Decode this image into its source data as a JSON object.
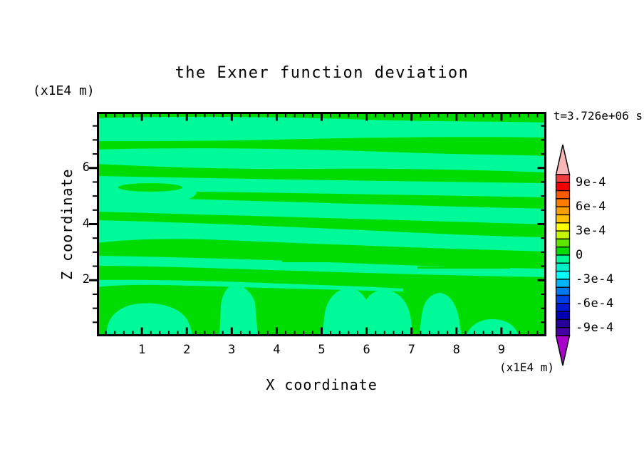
{
  "chart_data": {
    "type": "contour",
    "title": "the Exner function deviation",
    "annotation": "t=3.726e+06 s",
    "xlabel": "X coordinate",
    "x_units_label": "(x1E4 m)",
    "x_range": [
      0,
      10
    ],
    "x_major_ticks": [
      1,
      2,
      3,
      4,
      5,
      6,
      7,
      8,
      9
    ],
    "x_minor_step": 0.2,
    "ylabel": "Z coordinate",
    "y_units_label": "(x1E4 m)",
    "y_range": [
      0,
      8
    ],
    "y_major_ticks": [
      2,
      4,
      6
    ],
    "y_minor_step": 0.5,
    "field": {
      "description": "Deviation field is weak: wavy horizontal alternating bands of slightly positive (0 to 1e-4, green) and slightly negative (-1e-4 to 0, spring green) values; rounded negative blobs along the bottom boundary.",
      "positive_band_color": "#00dc00",
      "negative_band_color": "#00fa9a",
      "value_band_positive": [
        0,
        0.0001
      ],
      "value_band_negative": [
        -0.0001,
        0
      ]
    },
    "colorbar": {
      "min": -0.001,
      "max": 0.001,
      "step": 0.0001,
      "tick_labels": [
        "9e-4",
        "6e-4",
        "3e-4",
        "0",
        "-3e-4",
        "-6e-4",
        "-9e-4"
      ],
      "segment_colors_top_to_bottom": [
        "#f03c3c",
        "#f40000",
        "#fa5a00",
        "#fb7d00",
        "#fc9e00",
        "#fdc100",
        "#fefe00",
        "#c3f600",
        "#5ce600",
        "#00dc00",
        "#00fa9a",
        "#00f0c8",
        "#00ffff",
        "#00b4fa",
        "#0078f0",
        "#0041e6",
        "#0019d2",
        "#0000b4",
        "#28009b",
        "#4600a5"
      ],
      "over_range_color": "#f9b6b6",
      "under_range_color": "#aa00cc",
      "outline_color": "#000000"
    }
  }
}
